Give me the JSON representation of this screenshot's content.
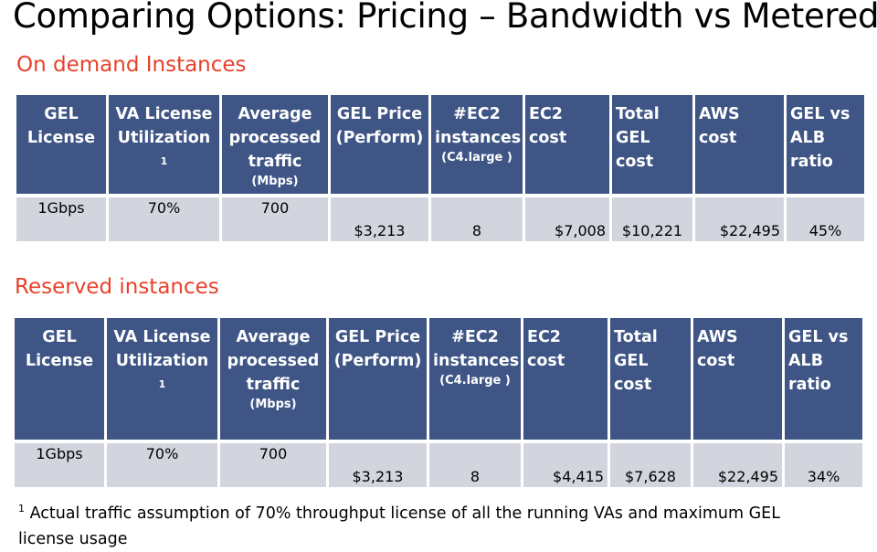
{
  "title": "Comparing Options: Pricing – Bandwidth vs Metered",
  "sections": [
    {
      "heading": "On demand Instances",
      "headers": {
        "license": [
          "GEL",
          "License"
        ],
        "va": [
          "VA License",
          "Utilization"
        ],
        "va_sup": "1",
        "traffic": [
          "Average",
          "processed",
          "traffic"
        ],
        "traffic_sub": "(Mbps)",
        "price": [
          "GEL Price",
          "(Perform)"
        ],
        "ec2": [
          "#EC2",
          "instances"
        ],
        "ec2_sub": "(C4.large )",
        "ec2cost": "EC2 cost",
        "total": [
          "Total",
          "GEL cost"
        ],
        "aws": [
          "AWS",
          "cost"
        ],
        "ratio": [
          "GEL vs",
          "ALB",
          "ratio"
        ]
      },
      "row": {
        "license": "1Gbps",
        "va": "70%",
        "traffic": "700",
        "price": "$3,213",
        "ec2": "8",
        "ec2cost": "$7,008",
        "total": "$10,221",
        "aws": "$22,495",
        "ratio": "45%"
      }
    },
    {
      "heading": "Reserved instances",
      "headers": {
        "license": [
          "GEL",
          "License"
        ],
        "va": [
          "VA License",
          "Utilization"
        ],
        "va_sup": "1",
        "traffic": [
          "Average",
          "processed",
          "traffic"
        ],
        "traffic_sub": "(Mbps)",
        "price": [
          "GEL Price",
          "(Perform)"
        ],
        "ec2": [
          "#EC2",
          "instances"
        ],
        "ec2_sub": "(C4.large )",
        "ec2cost": "EC2 cost",
        "total": [
          "Total",
          "GEL cost"
        ],
        "aws": [
          "AWS",
          "cost"
        ],
        "ratio": [
          "GEL vs",
          "ALB",
          "ratio"
        ]
      },
      "row": {
        "license": "1Gbps",
        "va": "70%",
        "traffic": "700",
        "price": "$3,213",
        "ec2": "8",
        "ec2cost": "$4,415",
        "total": "$7,628",
        "aws": "$22,495",
        "ratio": "34%"
      }
    }
  ],
  "footnote": {
    "marker": "1",
    "text": " Actual traffic assumption of 70% throughput license of all the running VAs and maximum GEL license usage"
  }
}
